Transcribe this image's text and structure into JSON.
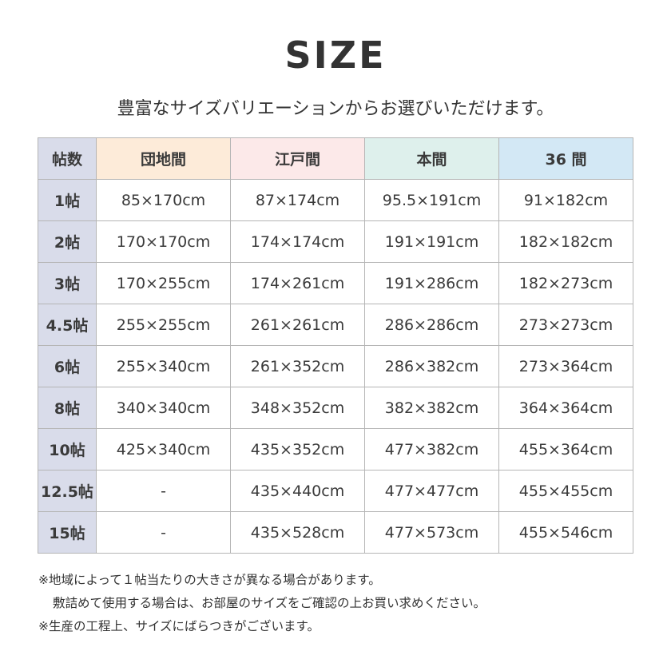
{
  "title": "SIZE",
  "subtitle": "豊富なサイズバリエーションからお選びいただけます。",
  "table": {
    "headers": [
      "帖数",
      "団地間",
      "江戸間",
      "本間",
      "36 間"
    ],
    "header_colors": [
      "#d9dcea",
      "#fdebd9",
      "#fce9e9",
      "#def0ec",
      "#d3e8f5"
    ],
    "rows": [
      [
        "1帖",
        "85×170cm",
        "87×174cm",
        "95.5×191cm",
        "91×182cm"
      ],
      [
        "2帖",
        "170×170cm",
        "174×174cm",
        "191×191cm",
        "182×182cm"
      ],
      [
        "3帖",
        "170×255cm",
        "174×261cm",
        "191×286cm",
        "182×273cm"
      ],
      [
        "4.5帖",
        "255×255cm",
        "261×261cm",
        "286×286cm",
        "273×273cm"
      ],
      [
        "6帖",
        "255×340cm",
        "261×352cm",
        "286×382cm",
        "273×364cm"
      ],
      [
        "8帖",
        "340×340cm",
        "348×352cm",
        "382×382cm",
        "364×364cm"
      ],
      [
        "10帖",
        "425×340cm",
        "435×352cm",
        "477×382cm",
        "455×364cm"
      ],
      [
        "12.5帖",
        "-",
        "435×440cm",
        "477×477cm",
        "455×455cm"
      ],
      [
        "15帖",
        "-",
        "435×528cm",
        "477×573cm",
        "455×546cm"
      ]
    ]
  },
  "notes": [
    "※地域によって１帖当たりの大きさが異なる場合があります。",
    "敷詰めて使用する場合は、お部屋のサイズをご確認の上お買い求めください。",
    "※生産の工程上、サイズにばらつきがございます。"
  ]
}
